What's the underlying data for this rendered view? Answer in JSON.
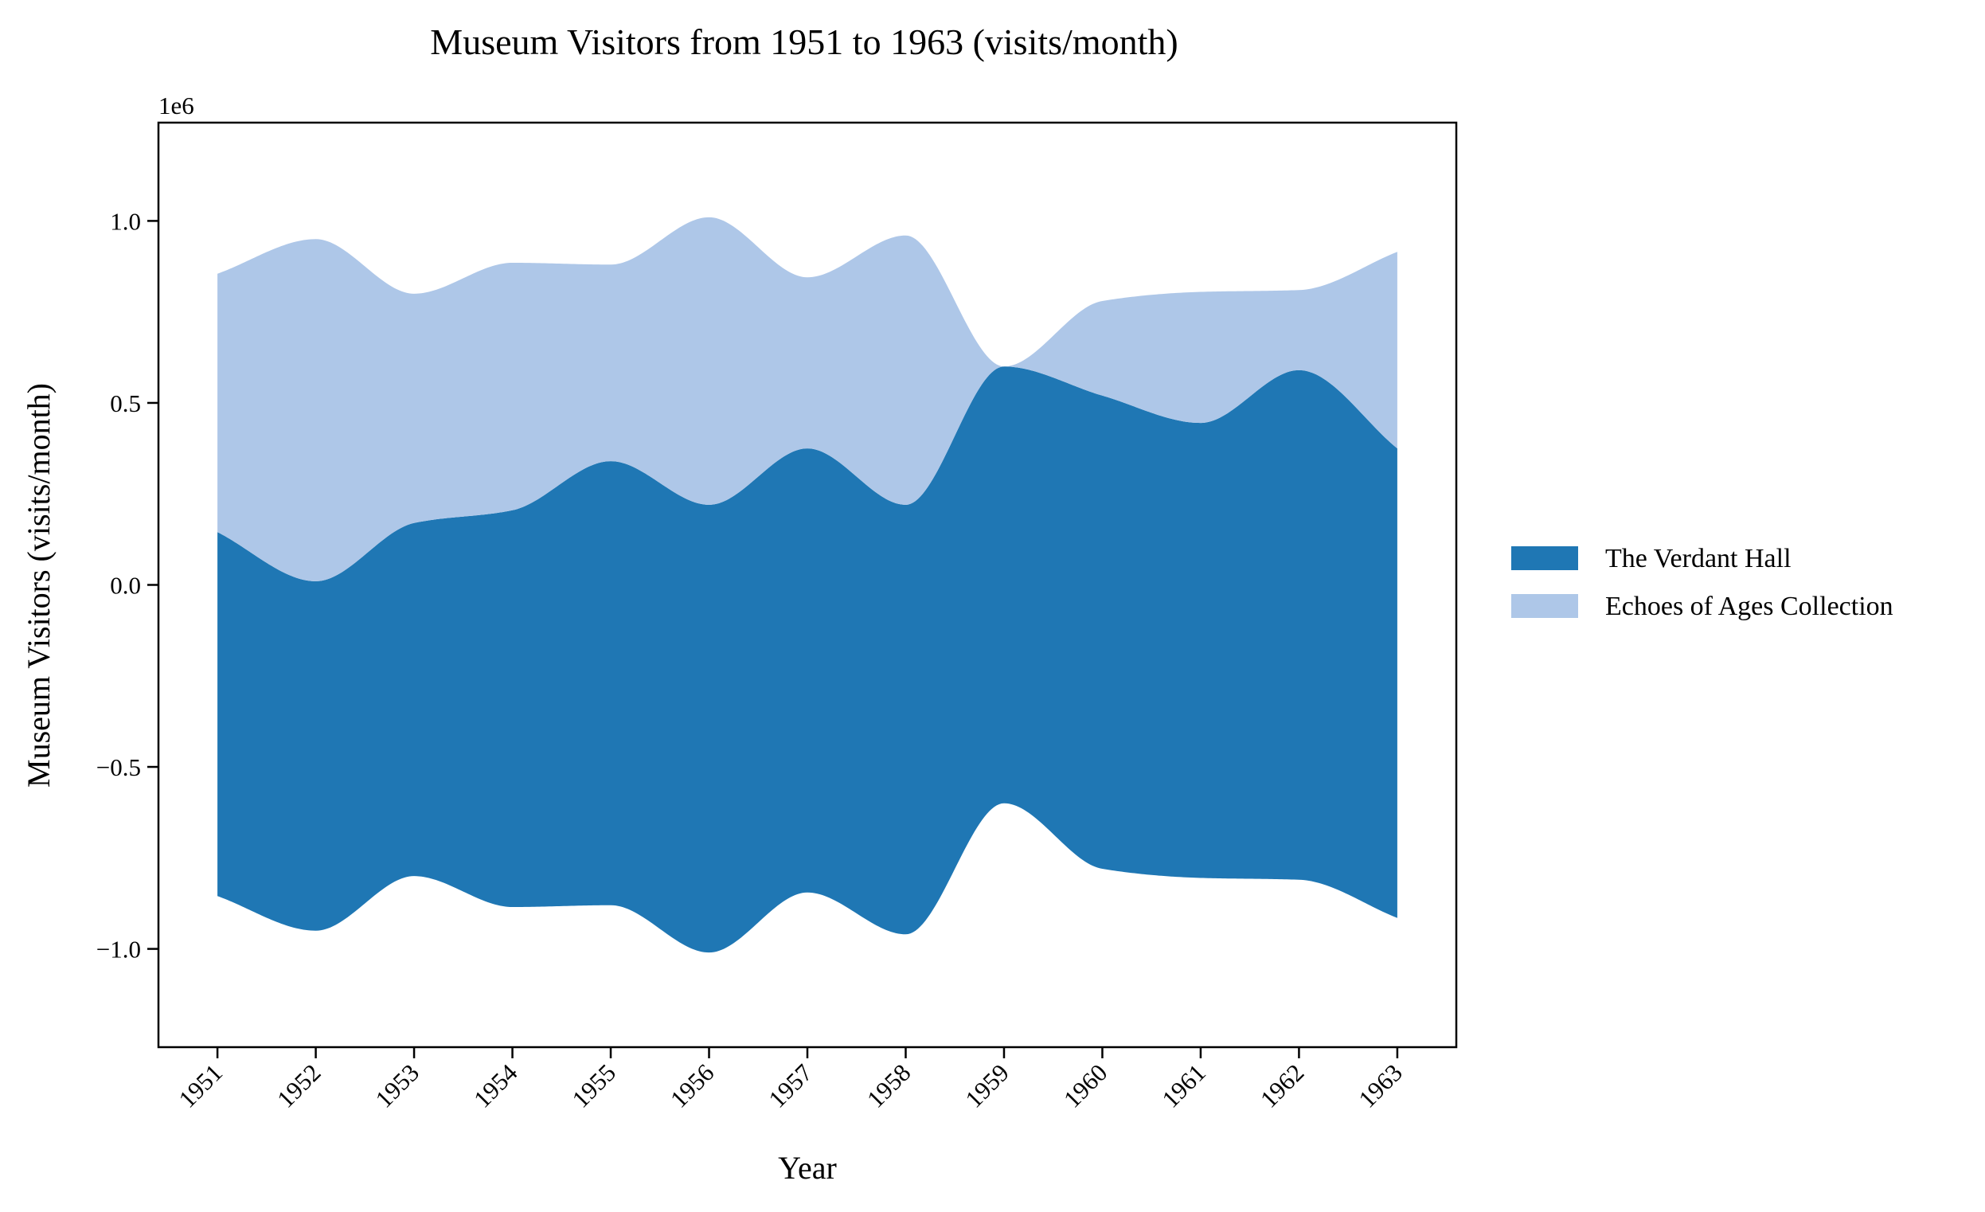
{
  "chart_data": {
    "type": "area",
    "subtype": "streamgraph",
    "title": "Museum Visitors from 1951 to 1963 (visits/month)",
    "xlabel": "Year",
    "ylabel": "Museum Visitors (visits/month)",
    "y_offset_label": "1e6",
    "x": [
      1951,
      1952,
      1953,
      1954,
      1955,
      1956,
      1957,
      1958,
      1959,
      1960,
      1961,
      1962,
      1963
    ],
    "x_tick_labels": [
      "1951",
      "1952",
      "1953",
      "1954",
      "1955",
      "1956",
      "1957",
      "1958",
      "1959",
      "1960",
      "1961",
      "1962",
      "1963"
    ],
    "y_ticks": [
      -1.0,
      -0.5,
      0.0,
      0.5,
      1.0
    ],
    "y_tick_labels": [
      "−1.0",
      "−0.5",
      "0.0",
      "0.5",
      "1.0"
    ],
    "ylim": [
      -1.27,
      1.27
    ],
    "xlim": [
      1950.4,
      1963.6
    ],
    "grid": false,
    "legend_position": "right",
    "series": [
      {
        "name": "The Verdant Hall",
        "color": "#1f77b4",
        "values": [
          1000000,
          960000,
          970000,
          1090000,
          1220000,
          1230000,
          1220000,
          1180000,
          1200000,
          1300000,
          1250000,
          1400000,
          1290000
        ]
      },
      {
        "name": "Echoes of Ages Collection",
        "color": "#aec7e8",
        "values": [
          710000,
          940000,
          630000,
          680000,
          540000,
          790000,
          470000,
          740000,
          0,
          260000,
          360000,
          220000,
          540000
        ]
      }
    ]
  }
}
